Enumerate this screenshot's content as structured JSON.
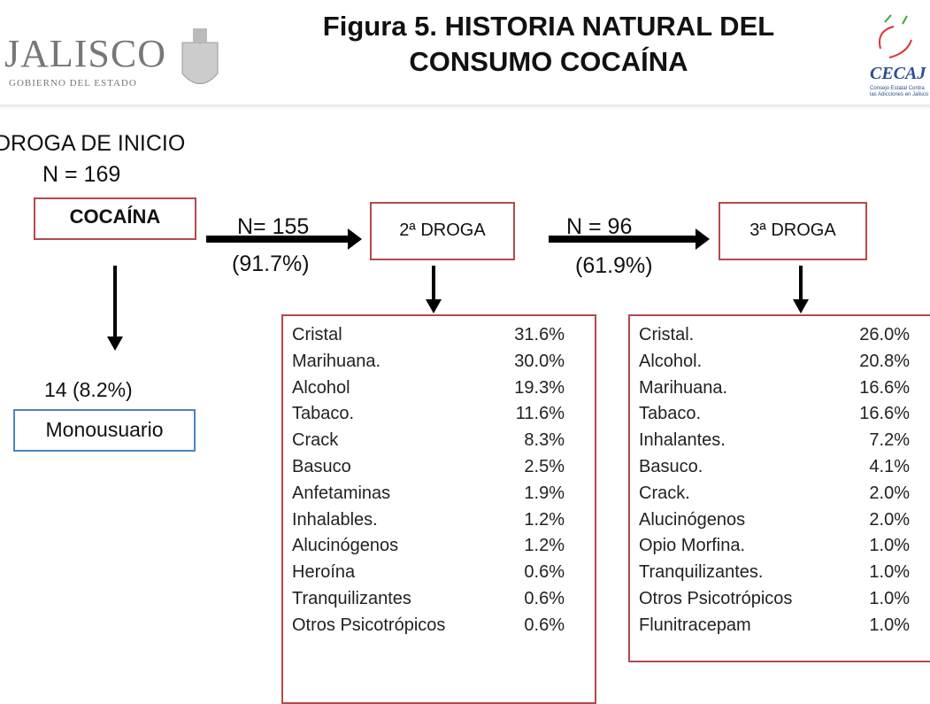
{
  "header": {
    "title_lines": [
      "Figura 5. HISTORIA NATURAL DEL",
      "CONSUMO COCAÍNA"
    ],
    "left_logo": {
      "name": "JALISCO",
      "subtitle": "GOBIERNO DEL ESTADO"
    },
    "right_logo": {
      "name": "CECAJ",
      "subtitle_lines": [
        "Consejo Estatal Contra",
        "las Adicciones en Jalisco"
      ]
    }
  },
  "start": {
    "label": "DROGA DE INICIO",
    "n": "N = 169",
    "drug": "COCAÍNA"
  },
  "mono": {
    "count": "14 (8.2%)",
    "label": "Monousuario"
  },
  "second": {
    "n": "N= 155",
    "pct": "(91.7%)",
    "label": "2ª DROGA",
    "table": [
      [
        "Cristal",
        "31.6%"
      ],
      [
        "Marihuana.",
        "30.0%"
      ],
      [
        "Alcohol",
        "19.3%"
      ],
      [
        "Tabaco.",
        "11.6%"
      ],
      [
        "Crack",
        "8.3%"
      ],
      [
        "Basuco",
        "2.5%"
      ],
      [
        "Anfetaminas",
        "1.9%"
      ],
      [
        "Inhalables.",
        "1.2%"
      ],
      [
        "Alucinógenos",
        "1.2%"
      ],
      [
        "Heroína",
        "0.6%"
      ],
      [
        "Tranquilizantes",
        "0.6%"
      ],
      [
        "Otros Psicotrópicos",
        "0.6%"
      ]
    ]
  },
  "third": {
    "n": "N = 96",
    "pct": "(61.9%)",
    "label": "3ª DROGA",
    "table": [
      [
        "Cristal.",
        "26.0%"
      ],
      [
        "Alcohol.",
        "20.8%"
      ],
      [
        "Marihuana.",
        "16.6%"
      ],
      [
        "Tabaco.",
        "16.6%"
      ],
      [
        "Inhalantes.",
        "7.2%"
      ],
      [
        "Basuco.",
        "4.1%"
      ],
      [
        "Crack.",
        "2.0%"
      ],
      [
        "Alucinógenos",
        "2.0%"
      ],
      [
        "Opio Morfina.",
        "1.0%"
      ],
      [
        "Tranquilizantes.",
        "1.0%"
      ],
      [
        "Otros Psicotrópicos",
        "1.0%"
      ],
      [
        "Flunitracepam",
        "1.0%"
      ]
    ]
  }
}
